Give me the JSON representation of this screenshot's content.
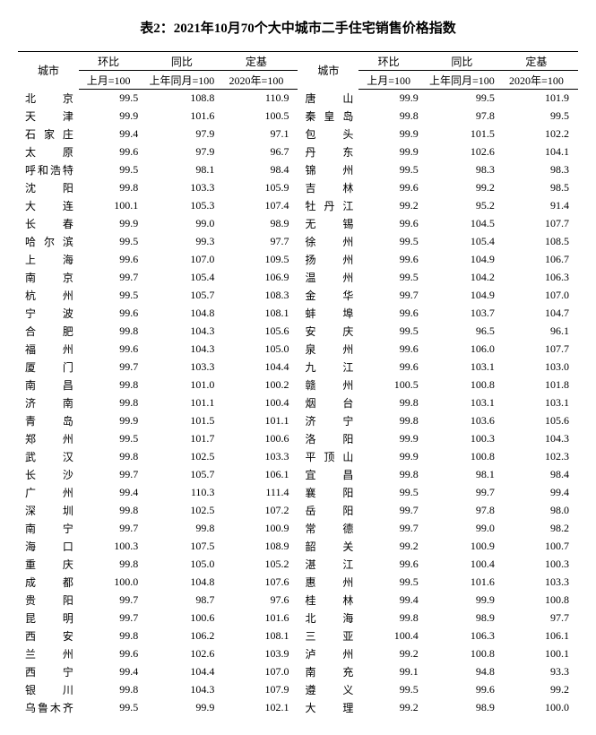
{
  "title": "表2：2021年10月70个大中城市二手住宅销售价格指数",
  "headers": {
    "city": "城市",
    "mom": "环比",
    "yoy": "同比",
    "fixed": "定基",
    "mom_sub": "上月=100",
    "yoy_sub": "上年同月=100",
    "fixed_sub": "2020年=100"
  },
  "left": [
    {
      "c": "北京",
      "m": "99.5",
      "y": "108.8",
      "f": "110.9"
    },
    {
      "c": "天津",
      "m": "99.9",
      "y": "101.6",
      "f": "100.5"
    },
    {
      "c": "石家庄",
      "m": "99.4",
      "y": "97.9",
      "f": "97.1"
    },
    {
      "c": "太原",
      "m": "99.6",
      "y": "97.9",
      "f": "96.7"
    },
    {
      "c": "呼和浩特",
      "m": "99.5",
      "y": "98.1",
      "f": "98.4"
    },
    {
      "c": "沈阳",
      "m": "99.8",
      "y": "103.3",
      "f": "105.9"
    },
    {
      "c": "大连",
      "m": "100.1",
      "y": "105.3",
      "f": "107.4"
    },
    {
      "c": "长春",
      "m": "99.9",
      "y": "99.0",
      "f": "98.9"
    },
    {
      "c": "哈尔滨",
      "m": "99.5",
      "y": "99.3",
      "f": "97.7"
    },
    {
      "c": "上海",
      "m": "99.6",
      "y": "107.0",
      "f": "109.5"
    },
    {
      "c": "南京",
      "m": "99.7",
      "y": "105.4",
      "f": "106.9"
    },
    {
      "c": "杭州",
      "m": "99.5",
      "y": "105.7",
      "f": "108.3"
    },
    {
      "c": "宁波",
      "m": "99.6",
      "y": "104.8",
      "f": "108.1"
    },
    {
      "c": "合肥",
      "m": "99.8",
      "y": "104.3",
      "f": "105.6"
    },
    {
      "c": "福州",
      "m": "99.6",
      "y": "104.3",
      "f": "105.0"
    },
    {
      "c": "厦门",
      "m": "99.7",
      "y": "103.3",
      "f": "104.4"
    },
    {
      "c": "南昌",
      "m": "99.8",
      "y": "101.0",
      "f": "100.2"
    },
    {
      "c": "济南",
      "m": "99.8",
      "y": "101.1",
      "f": "100.4"
    },
    {
      "c": "青岛",
      "m": "99.9",
      "y": "101.5",
      "f": "101.1"
    },
    {
      "c": "郑州",
      "m": "99.5",
      "y": "101.7",
      "f": "100.6"
    },
    {
      "c": "武汉",
      "m": "99.8",
      "y": "102.5",
      "f": "103.3"
    },
    {
      "c": "长沙",
      "m": "99.7",
      "y": "105.7",
      "f": "106.1"
    },
    {
      "c": "广州",
      "m": "99.4",
      "y": "110.3",
      "f": "111.4"
    },
    {
      "c": "深圳",
      "m": "99.8",
      "y": "102.5",
      "f": "107.2"
    },
    {
      "c": "南宁",
      "m": "99.7",
      "y": "99.8",
      "f": "100.9"
    },
    {
      "c": "海口",
      "m": "100.3",
      "y": "107.5",
      "f": "108.9"
    },
    {
      "c": "重庆",
      "m": "99.8",
      "y": "105.0",
      "f": "105.2"
    },
    {
      "c": "成都",
      "m": "100.0",
      "y": "104.8",
      "f": "107.6"
    },
    {
      "c": "贵阳",
      "m": "99.7",
      "y": "98.7",
      "f": "97.6"
    },
    {
      "c": "昆明",
      "m": "99.7",
      "y": "100.6",
      "f": "101.6"
    },
    {
      "c": "西安",
      "m": "99.8",
      "y": "106.2",
      "f": "108.1"
    },
    {
      "c": "兰州",
      "m": "99.6",
      "y": "102.6",
      "f": "103.9"
    },
    {
      "c": "西宁",
      "m": "99.4",
      "y": "104.4",
      "f": "107.0"
    },
    {
      "c": "银川",
      "m": "99.8",
      "y": "104.3",
      "f": "107.9"
    },
    {
      "c": "乌鲁木齐",
      "m": "99.5",
      "y": "99.9",
      "f": "102.1"
    }
  ],
  "right": [
    {
      "c": "唐山",
      "m": "99.9",
      "y": "99.5",
      "f": "101.9"
    },
    {
      "c": "秦皇岛",
      "m": "99.8",
      "y": "97.8",
      "f": "99.5"
    },
    {
      "c": "包头",
      "m": "99.9",
      "y": "101.5",
      "f": "102.2"
    },
    {
      "c": "丹东",
      "m": "99.9",
      "y": "102.6",
      "f": "104.1"
    },
    {
      "c": "锦州",
      "m": "99.5",
      "y": "98.3",
      "f": "98.3"
    },
    {
      "c": "吉林",
      "m": "99.6",
      "y": "99.2",
      "f": "98.5"
    },
    {
      "c": "牡丹江",
      "m": "99.2",
      "y": "95.2",
      "f": "91.4"
    },
    {
      "c": "无锡",
      "m": "99.6",
      "y": "104.5",
      "f": "107.7"
    },
    {
      "c": "徐州",
      "m": "99.5",
      "y": "105.4",
      "f": "108.5"
    },
    {
      "c": "扬州",
      "m": "99.6",
      "y": "104.9",
      "f": "106.7"
    },
    {
      "c": "温州",
      "m": "99.5",
      "y": "104.2",
      "f": "106.3"
    },
    {
      "c": "金华",
      "m": "99.7",
      "y": "104.9",
      "f": "107.0"
    },
    {
      "c": "蚌埠",
      "m": "99.6",
      "y": "103.7",
      "f": "104.7"
    },
    {
      "c": "安庆",
      "m": "99.5",
      "y": "96.5",
      "f": "96.1"
    },
    {
      "c": "泉州",
      "m": "99.6",
      "y": "106.0",
      "f": "107.7"
    },
    {
      "c": "九江",
      "m": "99.6",
      "y": "103.1",
      "f": "103.0"
    },
    {
      "c": "赣州",
      "m": "100.5",
      "y": "100.8",
      "f": "101.8"
    },
    {
      "c": "烟台",
      "m": "99.8",
      "y": "103.1",
      "f": "103.1"
    },
    {
      "c": "济宁",
      "m": "99.8",
      "y": "103.6",
      "f": "105.6"
    },
    {
      "c": "洛阳",
      "m": "99.9",
      "y": "100.3",
      "f": "104.3"
    },
    {
      "c": "平顶山",
      "m": "99.9",
      "y": "100.8",
      "f": "102.3"
    },
    {
      "c": "宜昌",
      "m": "99.8",
      "y": "98.1",
      "f": "98.4"
    },
    {
      "c": "襄阳",
      "m": "99.5",
      "y": "99.7",
      "f": "99.4"
    },
    {
      "c": "岳阳",
      "m": "99.7",
      "y": "97.8",
      "f": "98.0"
    },
    {
      "c": "常德",
      "m": "99.7",
      "y": "99.0",
      "f": "98.2"
    },
    {
      "c": "韶关",
      "m": "99.2",
      "y": "100.9",
      "f": "100.7"
    },
    {
      "c": "湛江",
      "m": "99.6",
      "y": "100.4",
      "f": "100.3"
    },
    {
      "c": "惠州",
      "m": "99.5",
      "y": "101.6",
      "f": "103.3"
    },
    {
      "c": "桂林",
      "m": "99.4",
      "y": "99.9",
      "f": "100.8"
    },
    {
      "c": "北海",
      "m": "99.8",
      "y": "98.9",
      "f": "97.7"
    },
    {
      "c": "三亚",
      "m": "100.4",
      "y": "106.3",
      "f": "106.1"
    },
    {
      "c": "泸州",
      "m": "99.2",
      "y": "100.8",
      "f": "100.1"
    },
    {
      "c": "南充",
      "m": "99.1",
      "y": "94.8",
      "f": "93.3"
    },
    {
      "c": "遵义",
      "m": "99.5",
      "y": "99.6",
      "f": "99.2"
    },
    {
      "c": "大理",
      "m": "99.2",
      "y": "98.9",
      "f": "100.0"
    }
  ]
}
